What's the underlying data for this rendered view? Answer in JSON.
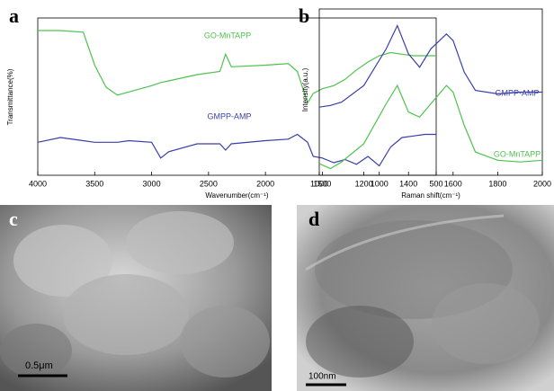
{
  "chart_data": [
    {
      "type": "line",
      "panel": "a",
      "x_label": "Wavenumber(cm⁻¹)",
      "y_label": "Transmittance(%)",
      "x": [
        4000,
        3800,
        3600,
        3500,
        3400,
        3300,
        3200,
        3000,
        2920,
        2850,
        2600,
        2400,
        2350,
        2300,
        2000,
        1800,
        1720,
        1630,
        1580,
        1500,
        1400,
        1300,
        1200,
        1100,
        1000,
        900,
        800,
        700,
        600,
        500
      ],
      "series": [
        {
          "name": "GO-MnTAPP",
          "color": "#4ec24e",
          "values": [
            92,
            92,
            91,
            70,
            56,
            51,
            53,
            57,
            59,
            60,
            64,
            66,
            77,
            69,
            70,
            71,
            66,
            46,
            52,
            55,
            57,
            61,
            67,
            72,
            76,
            78,
            77,
            76,
            76,
            76
          ]
        },
        {
          "name": "GMPP-AMP",
          "color": "#3a3fa8",
          "values": [
            21,
            24,
            22,
            21,
            21,
            21,
            22,
            21,
            11,
            15,
            20,
            20,
            16,
            20,
            22,
            23,
            26,
            21,
            12,
            11,
            8,
            10,
            7,
            12,
            6,
            18,
            24,
            25,
            26,
            26
          ]
        }
      ],
      "xlim": [
        4000,
        500
      ],
      "xticks": [
        4000,
        3500,
        3000,
        2500,
        2000,
        1500,
        1000,
        500
      ],
      "ylim": [
        0,
        100
      ]
    },
    {
      "type": "line",
      "panel": "b",
      "x_label": "Raman shift(cm⁻¹)",
      "y_label": "Intensity(a.u.)",
      "x": [
        1000,
        1050,
        1100,
        1200,
        1300,
        1350,
        1400,
        1450,
        1500,
        1570,
        1600,
        1650,
        1700,
        1800,
        1900,
        2000
      ],
      "series": [
        {
          "name": "GO-MnTAPP",
          "color": "#4ec24e",
          "values": [
            7,
            4,
            8,
            19,
            43,
            54,
            38,
            35,
            43,
            54,
            50,
            30,
            14,
            9,
            8,
            9
          ]
        },
        {
          "name": "GMPP-AMP",
          "color": "#3a3fa8",
          "values": [
            41,
            42,
            44,
            54,
            76,
            90,
            73,
            65,
            76,
            85,
            81,
            62,
            51,
            49,
            50,
            50
          ]
        }
      ],
      "xlim": [
        1000,
        2000
      ],
      "xticks": [
        1000,
        1200,
        1400,
        1600,
        1800,
        2000
      ],
      "ylim": [
        0,
        100
      ]
    }
  ],
  "images": [
    {
      "label": "c",
      "scale_bar": "0.5μm"
    },
    {
      "label": "d",
      "scale_bar": "100nm"
    }
  ]
}
